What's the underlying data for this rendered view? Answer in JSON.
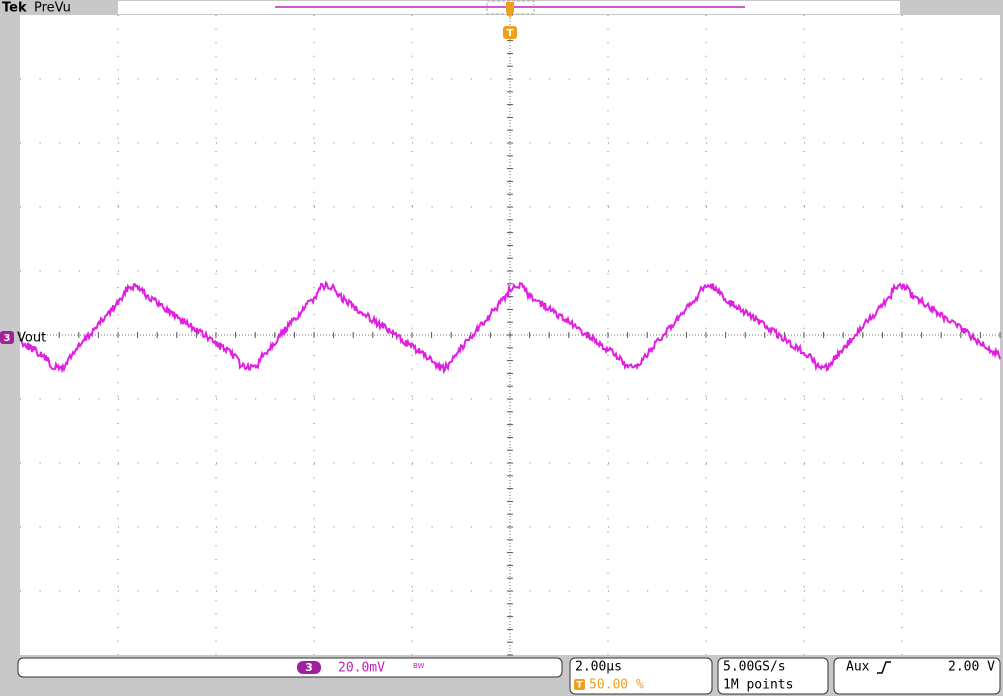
{
  "header": {
    "brand": "Tek",
    "mode": "PreVu"
  },
  "trigger_marker": "T",
  "channel_marker": {
    "number": "3",
    "label": "Vout"
  },
  "status": {
    "channel": "3",
    "scale": "20.0mV",
    "bandwidth": "BW",
    "timebase": "2.00µs",
    "trigger_position_icon": "T",
    "trigger_position": "50.00 %",
    "sample_rate": "5.00GS/s",
    "record_length": "1M points",
    "trigger_source": "Aux",
    "trigger_level": "2.00 V"
  }
}
